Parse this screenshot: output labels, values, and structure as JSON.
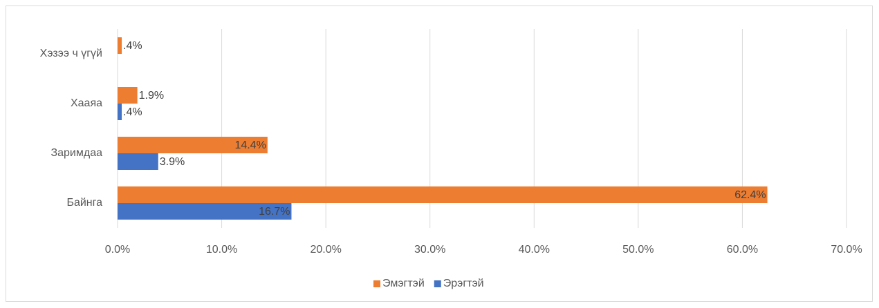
{
  "chart_data": {
    "type": "hbar",
    "categories": [
      "Байнга",
      "Заримдаа",
      "Хааяа",
      "Хэзээ ч үгүй"
    ],
    "series": [
      {
        "name": "Эмэгтэй",
        "color": "#ed7d31",
        "values": [
          62.4,
          14.4,
          1.9,
          0.4
        ],
        "value_labels": [
          "62.4%",
          "14.4%",
          "1.9%",
          ".4%"
        ]
      },
      {
        "name": "Эрэгтэй",
        "color": "#4472c4",
        "values": [
          16.7,
          3.9,
          0.4,
          null
        ],
        "value_labels": [
          "16.7%",
          "3.9%",
          ".4%",
          null
        ]
      }
    ],
    "xlim": [
      0,
      70
    ],
    "xticks": [
      {
        "value": 0,
        "label": "0.0%"
      },
      {
        "value": 10,
        "label": "10.0%"
      },
      {
        "value": 20,
        "label": "20.0%"
      },
      {
        "value": 30,
        "label": "30.0%"
      },
      {
        "value": 40,
        "label": "40.0%"
      },
      {
        "value": 50,
        "label": "50.0%"
      },
      {
        "value": 60,
        "label": "60.0%"
      },
      {
        "value": 70,
        "label": "70.0%"
      }
    ],
    "grid": true,
    "legend": "bottom"
  }
}
